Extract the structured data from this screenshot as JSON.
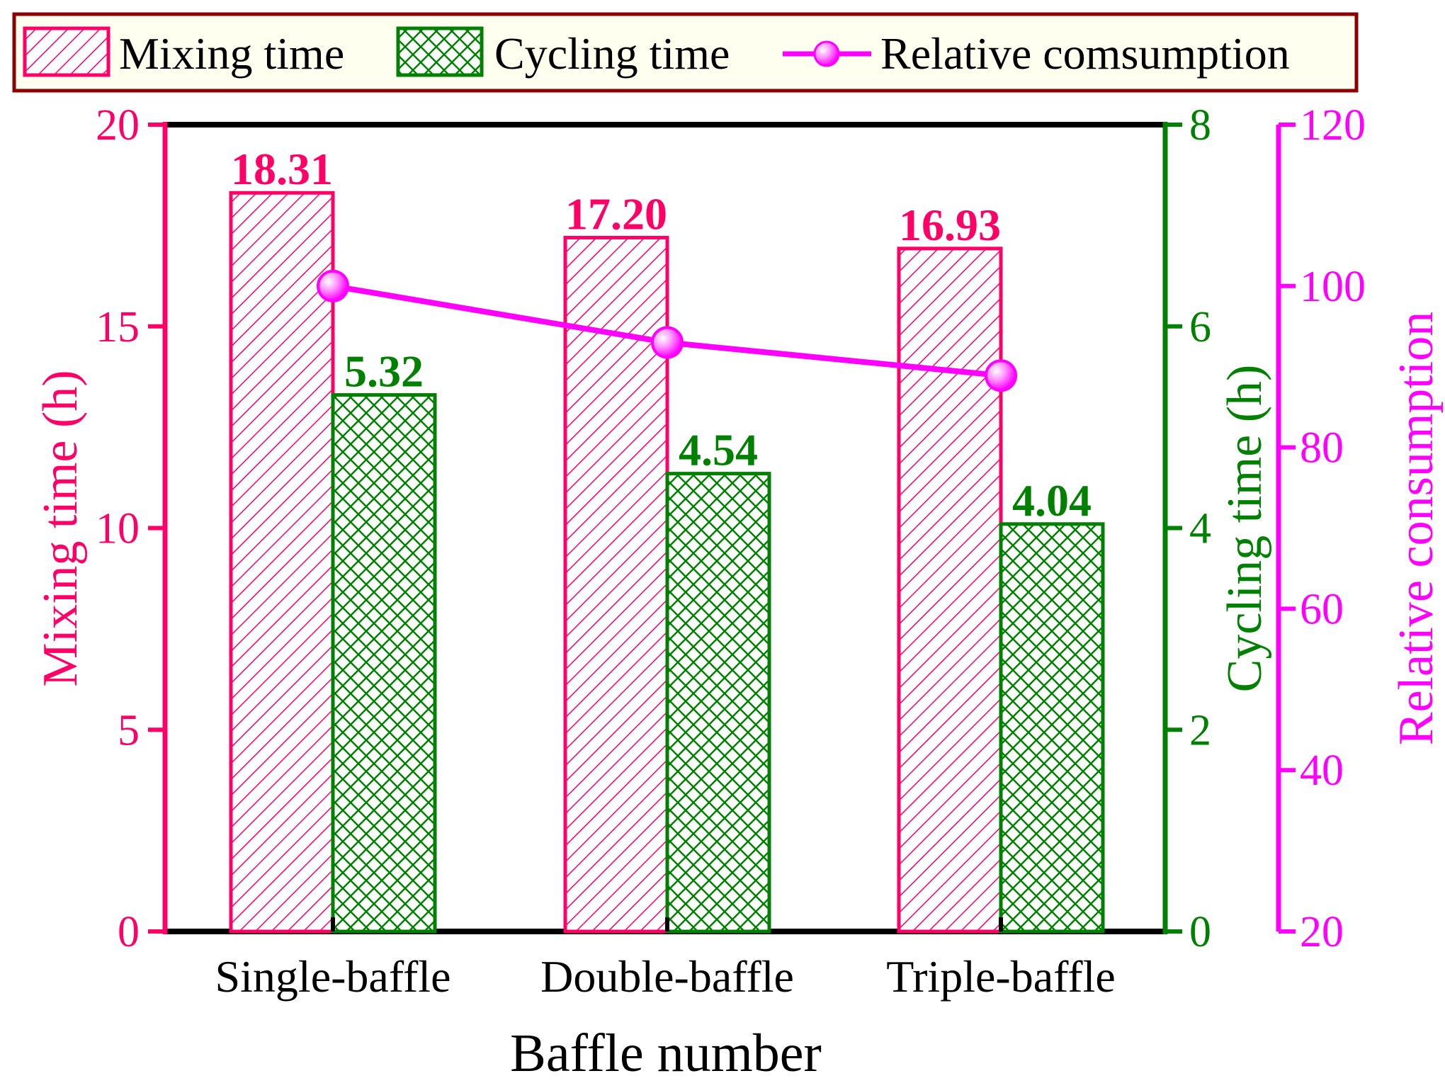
{
  "chart_data": {
    "type": "bar",
    "categories": [
      "Single-baffle",
      "Double-baffle",
      "Triple-baffle"
    ],
    "series": [
      {
        "name": "Mixing time",
        "axis": "left",
        "values": [
          18.31,
          17.2,
          16.93
        ],
        "labels": [
          "18.31",
          "17.20",
          "16.93"
        ],
        "color": "#ff0066",
        "pattern": "diagonal-hatch"
      },
      {
        "name": "Cycling time",
        "axis": "right",
        "values": [
          5.32,
          4.54,
          4.04
        ],
        "labels": [
          "5.32",
          "4.54",
          "4.04"
        ],
        "color": "#008000",
        "pattern": "cross-hatch"
      },
      {
        "name": "Relative comsumption",
        "type": "line",
        "axis": "right2",
        "values": [
          100,
          93.0,
          88.9
        ],
        "color": "#ff00ff"
      }
    ],
    "xlabel": "Baffle number",
    "ylabel_left": "Mixing time (h)",
    "ylabel_right": "Cycling time (h)",
    "ylabel_right2": "Relative consumption",
    "ylim_left": [
      0,
      20
    ],
    "ylim_right": [
      0,
      8
    ],
    "ylim_right2": [
      20,
      120
    ],
    "yticks_left": [
      "0",
      "5",
      "10",
      "15",
      "20"
    ],
    "yticks_right": [
      "0",
      "2",
      "4",
      "6",
      "8"
    ],
    "yticks_right2": [
      "20",
      "40",
      "60",
      "80",
      "100",
      "120"
    ],
    "legend": {
      "position": "top",
      "entries": [
        "Mixing time",
        "Cycling time",
        "Relative comsumption"
      ]
    },
    "grid": false
  },
  "colors": {
    "mixing": "#ff0066",
    "cycling": "#008000",
    "consumption": "#ff00ff",
    "legend_border": "#8b0000",
    "legend_bg": "#fffff0"
  }
}
